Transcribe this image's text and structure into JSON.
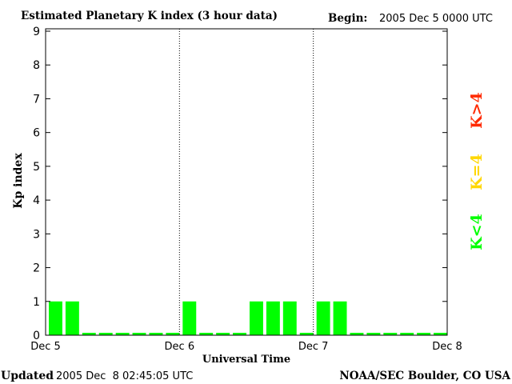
{
  "chart_data": {
    "type": "bar",
    "title": "Estimated Planetary K index (3 hour data)",
    "begin_label": "Begin:",
    "begin_value": "2005 Dec 5 0000 UTC",
    "xlabel": "Universal Time",
    "ylabel": "Kp index",
    "ylim": [
      0,
      9
    ],
    "yticks": [
      "0",
      "1",
      "2",
      "3",
      "4",
      "5",
      "6",
      "7",
      "8",
      "9"
    ],
    "xticks": [
      "Dec 5",
      "Dec 6",
      "Dec 7",
      "Dec 8"
    ],
    "interval_hours": 3,
    "values": [
      1,
      1,
      0,
      0,
      0,
      0,
      0,
      0,
      1,
      0,
      0,
      0,
      1,
      1,
      1,
      0,
      1,
      1,
      0,
      0,
      0,
      0,
      0,
      0
    ],
    "legend": [
      {
        "label": "K>4",
        "color": "#ff2a00"
      },
      {
        "label": "K=4",
        "color": "#ffd700"
      },
      {
        "label": "K<4",
        "color": "#00ff00"
      }
    ],
    "bar_color": "#00ff00",
    "grid": false,
    "day_separators": true
  },
  "footer": {
    "updated_label": "Updated",
    "updated_value": "2005 Dec  8 02:45:05 UTC",
    "source": "NOAA/SEC Boulder, CO USA"
  }
}
